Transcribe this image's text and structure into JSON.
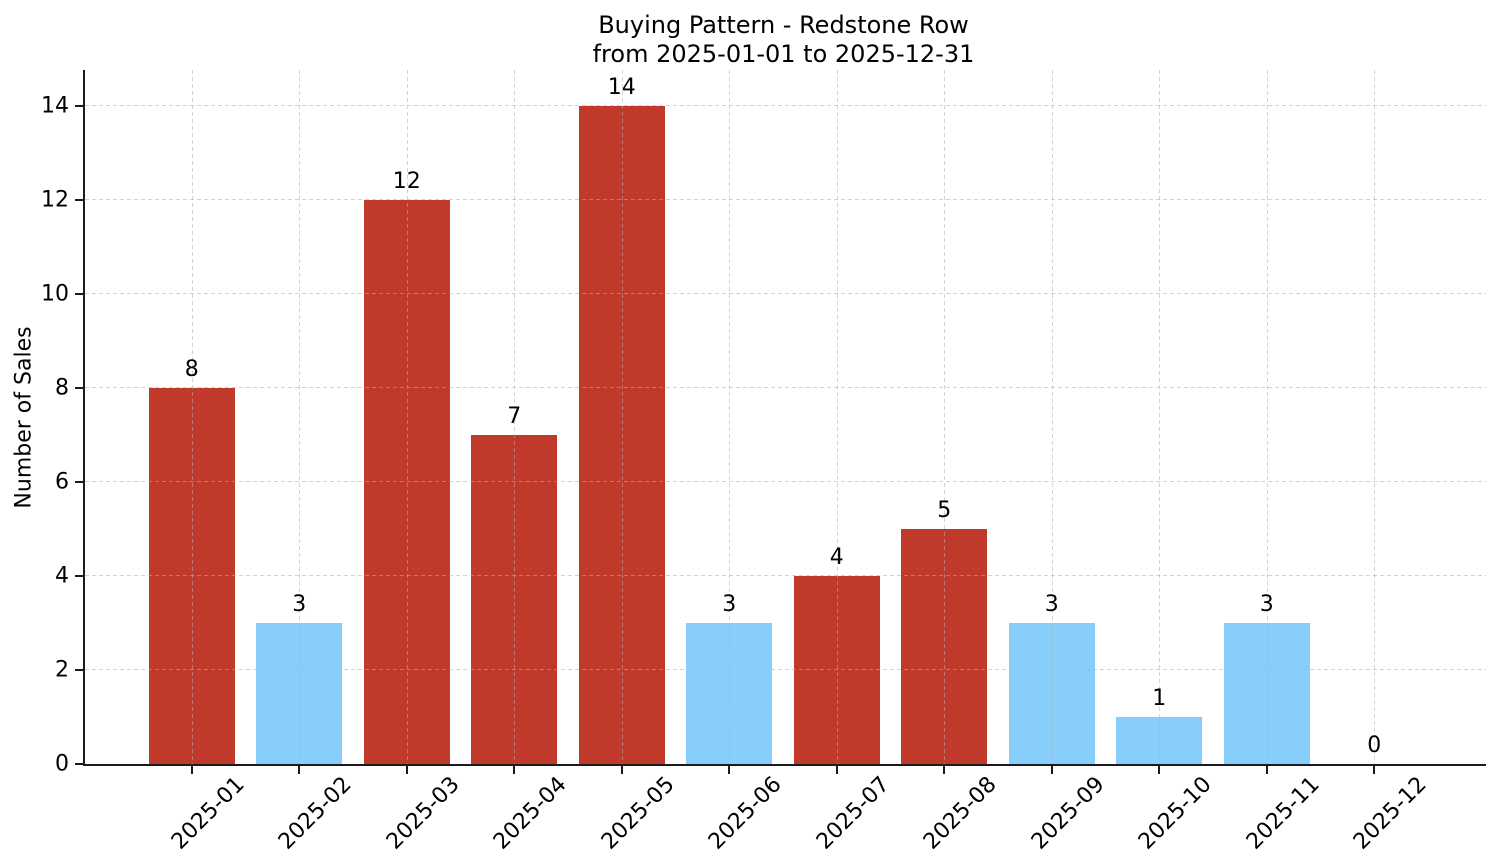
{
  "chart_data": {
    "type": "bar",
    "title": "Buying Pattern - Redstone Row",
    "subtitle": "from 2025-01-01 to 2025-12-31",
    "xlabel": "",
    "ylabel": "Number of Sales",
    "categories": [
      "2025-01",
      "2025-02",
      "2025-03",
      "2025-04",
      "2025-05",
      "2025-06",
      "2025-07",
      "2025-08",
      "2025-09",
      "2025-10",
      "2025-11",
      "2025-12"
    ],
    "values": [
      8,
      3,
      12,
      7,
      14,
      3,
      4,
      5,
      3,
      1,
      3,
      0
    ],
    "bar_value_labels": [
      "8",
      "3",
      "12",
      "7",
      "14",
      "3",
      "4",
      "5",
      "3",
      "1",
      "3",
      "0"
    ],
    "bar_colors": [
      "#C0392B",
      "#87CEFA",
      "#C0392B",
      "#C0392B",
      "#C0392B",
      "#87CEFA",
      "#C0392B",
      "#C0392B",
      "#87CEFA",
      "#87CEFA",
      "#87CEFA",
      "#C0392B"
    ],
    "colors": {
      "red_bar": "#C0392B",
      "blue_bar": "#87CEFA",
      "spine": "#1c1c1c",
      "gridline": "#c9c9c9",
      "text": "#000000",
      "background": "#ffffff"
    },
    "yticks": [
      0,
      2,
      4,
      6,
      8,
      10,
      12,
      14
    ],
    "ylim": [
      0,
      14.77
    ],
    "grid": true,
    "grid_style": "dashed",
    "legend": null,
    "x_tick_rotation_deg": 45
  }
}
